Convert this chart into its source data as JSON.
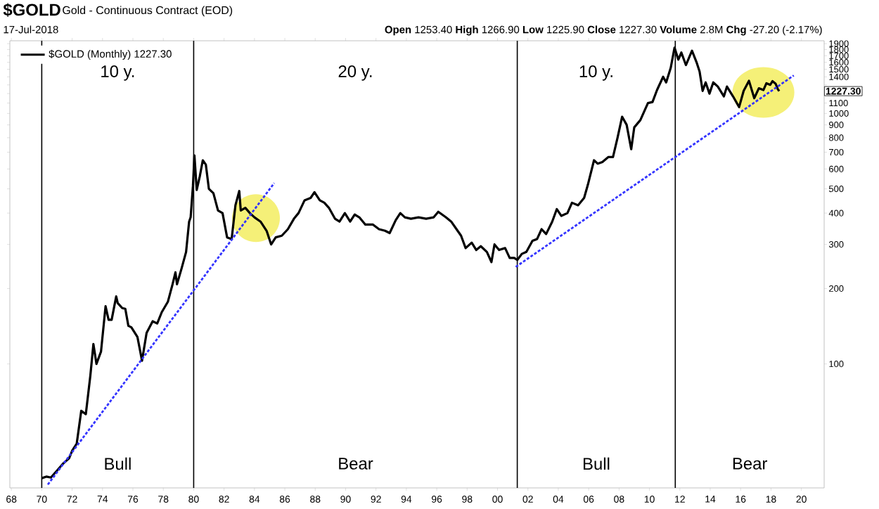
{
  "chart_data": {
    "type": "line",
    "title": "$GOLD",
    "subtitle": "Gold - Continuous Contract (EOD)",
    "annotations": [
      "17-Jul-2018",
      "**Open** 1253.40 **High** 1266.90 **Low** 1225.90 **Close** 1227.30 **Volume** 2.8M **Chg** -27.20 (-2.17%)",
      "1227.30",
      "10 y.",
      "20 y.",
      "10 y.",
      "Bull",
      "Bear",
      "Bull",
      "Bear"
    ],
    "log": "y",
    "legend": "top left",
    "grid": false,
    "xlim": [
      1967.9,
      2021.5
    ],
    "ylim": [
      32,
      1950
    ],
    "xticks": [
      {
        "value": 1968,
        "label": "68"
      },
      {
        "value": 1970,
        "label": "70"
      },
      {
        "value": 1972,
        "label": "72"
      },
      {
        "value": 1974,
        "label": "74"
      },
      {
        "value": 1976,
        "label": "76"
      },
      {
        "value": 1978,
        "label": "78"
      },
      {
        "value": 1980,
        "label": "80"
      },
      {
        "value": 1982,
        "label": "82"
      },
      {
        "value": 1984,
        "label": "84"
      },
      {
        "value": 1986,
        "label": "86"
      },
      {
        "value": 1988,
        "label": "88"
      },
      {
        "value": 1990,
        "label": "90"
      },
      {
        "value": 1992,
        "label": "92"
      },
      {
        "value": 1994,
        "label": "94"
      },
      {
        "value": 1996,
        "label": "96"
      },
      {
        "value": 1998,
        "label": "98"
      },
      {
        "value": 2000,
        "label": "00"
      },
      {
        "value": 2002,
        "label": "02"
      },
      {
        "value": 2004,
        "label": "04"
      },
      {
        "value": 2006,
        "label": "06"
      },
      {
        "value": 2008,
        "label": "08"
      },
      {
        "value": 2010,
        "label": "10"
      },
      {
        "value": 2012,
        "label": "12"
      },
      {
        "value": 2014,
        "label": "14"
      },
      {
        "value": 2016,
        "label": "16"
      },
      {
        "value": 2018,
        "label": "18"
      },
      {
        "value": 2020,
        "label": "20"
      }
    ],
    "yticks": [
      100,
      200,
      300,
      400,
      500,
      600,
      700,
      800,
      900,
      1000,
      1100,
      {
        "value": 1200,
        "label": null
      },
      {
        "value": 1300,
        "label": null
      },
      1400,
      1500,
      1600,
      1700,
      1800,
      1900
    ],
    "ref_lines": [
      {
        "axis": "x",
        "value": 1970,
        "color": "#000000"
      },
      {
        "axis": "x",
        "value": 1980,
        "color": "#000000"
      },
      {
        "axis": "x",
        "value": 2001.3,
        "color": "#000000"
      },
      {
        "axis": "x",
        "value": 2011.7,
        "color": "#000000"
      }
    ],
    "series": [
      {
        "name": "$GOLD (Monthly) 1227.30",
        "color": "#000000",
        "x": [
          1970.0,
          1970.3,
          1970.6,
          1971.0,
          1971.4,
          1971.8,
          1972.0,
          1972.3,
          1972.6,
          1972.9,
          1973.2,
          1973.4,
          1973.6,
          1973.9,
          1974.2,
          1974.4,
          1974.6,
          1974.9,
          1975.0,
          1975.3,
          1975.5,
          1975.7,
          1975.9,
          1976.3,
          1976.6,
          1976.9,
          1977.3,
          1977.6,
          1977.9,
          1978.3,
          1978.6,
          1978.8,
          1978.9,
          1979.2,
          1979.5,
          1979.7,
          1979.8,
          1979.95,
          1980.05,
          1980.2,
          1980.4,
          1980.6,
          1980.8,
          1981.0,
          1981.3,
          1981.6,
          1981.9,
          1982.2,
          1982.5,
          1982.75,
          1983.0,
          1983.1,
          1983.4,
          1983.7,
          1984.0,
          1984.4,
          1984.8,
          1985.1,
          1985.4,
          1985.8,
          1986.2,
          1986.6,
          1986.9,
          1987.3,
          1987.7,
          1987.95,
          1988.3,
          1988.6,
          1988.9,
          1989.3,
          1989.6,
          1989.95,
          1990.3,
          1990.6,
          1990.9,
          1991.3,
          1991.8,
          1992.2,
          1992.6,
          1992.9,
          1993.3,
          1993.6,
          1993.9,
          1994.3,
          1994.8,
          1995.3,
          1995.8,
          1996.1,
          1996.6,
          1996.95,
          1997.3,
          1997.6,
          1997.9,
          1998.3,
          1998.6,
          1998.9,
          1999.3,
          1999.6,
          1999.8,
          2000.1,
          2000.5,
          2000.8,
          2001.1,
          2001.3,
          2001.6,
          2001.9,
          2002.3,
          2002.6,
          2002.9,
          2003.2,
          2003.6,
          2003.9,
          2004.2,
          2004.6,
          2004.9,
          2005.3,
          2005.7,
          2005.95,
          2006.35,
          2006.6,
          2006.9,
          2007.3,
          2007.6,
          2007.9,
          2008.2,
          2008.5,
          2008.8,
          2009.0,
          2009.4,
          2009.9,
          2010.2,
          2010.5,
          2010.9,
          2011.1,
          2011.4,
          2011.65,
          2011.9,
          2012.1,
          2012.4,
          2012.8,
          2013.1,
          2013.3,
          2013.5,
          2013.7,
          2013.95,
          2014.2,
          2014.5,
          2014.9,
          2015.1,
          2015.5,
          2015.9,
          2016.2,
          2016.55,
          2016.9,
          2017.2,
          2017.5,
          2017.7,
          2017.95,
          2018.1,
          2018.3,
          2018.45,
          2018.54
        ],
        "values": [
          35,
          35.5,
          35.2,
          37.5,
          40,
          42,
          45,
          48,
          65,
          63,
          90,
          120,
          100,
          112,
          170,
          150,
          150,
          186,
          175,
          167,
          166,
          142,
          140,
          128,
          103,
          133,
          148,
          145,
          161,
          177,
          207,
          232,
          208,
          240,
          280,
          370,
          385,
          512,
          680,
          495,
          560,
          650,
          625,
          500,
          480,
          410,
          400,
          320,
          315,
          430,
          490,
          410,
          420,
          400,
          385,
          370,
          340,
          300,
          320,
          325,
          345,
          380,
          400,
          450,
          460,
          485,
          450,
          440,
          420,
          380,
          370,
          400,
          370,
          395,
          385,
          360,
          360,
          345,
          340,
          333,
          375,
          400,
          385,
          380,
          385,
          380,
          385,
          405,
          385,
          370,
          345,
          325,
          290,
          305,
          285,
          295,
          280,
          255,
          300,
          285,
          290,
          265,
          265,
          260,
          275,
          280,
          310,
          315,
          345,
          330,
          370,
          415,
          390,
          400,
          440,
          430,
          460,
          520,
          650,
          630,
          640,
          670,
          670,
          800,
          970,
          900,
          720,
          880,
          940,
          1100,
          1110,
          1240,
          1400,
          1330,
          1520,
          1830,
          1640,
          1750,
          1560,
          1780,
          1600,
          1470,
          1230,
          1330,
          1200,
          1330,
          1280,
          1170,
          1280,
          1170,
          1060,
          1230,
          1350,
          1150,
          1260,
          1240,
          1320,
          1300,
          1345,
          1315,
          1250,
          1227.3
        ]
      },
      {
        "type": "line",
        "color": "#3333ff",
        "line_style": "dashed",
        "x": [
          1970.4,
          1985.3
        ],
        "values": [
          33,
          527
        ]
      },
      {
        "type": "line",
        "color": "#3333ff",
        "line_style": "dashed",
        "x": [
          2001.2,
          2019.5
        ],
        "values": [
          244,
          1418
        ]
      }
    ]
  }
}
